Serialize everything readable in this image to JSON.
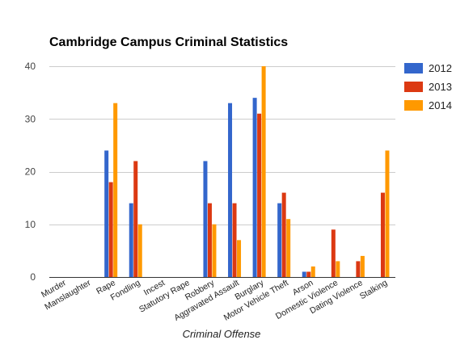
{
  "chart_data": {
    "type": "bar",
    "title": "Cambridge Campus Criminal Statistics",
    "xlabel": "Criminal Offense",
    "ylabel": "",
    "ylim": [
      0,
      40
    ],
    "yticks": [
      0,
      10,
      20,
      30,
      40
    ],
    "grid": true,
    "legend_position": "right",
    "categories": [
      "Murder",
      "Manslaughter",
      "Rape",
      "Fondling",
      "Incest",
      "Statutory Rape",
      "Robbery",
      "Aggravated Assault",
      "Burglary",
      "Motor Vehicle Theft",
      "Arson",
      "Domestic Violence",
      "Dating Violence",
      "Stalking"
    ],
    "series": [
      {
        "name": "2012",
        "color": "#3366cc",
        "values": [
          0,
          0,
          24,
          14,
          0,
          0,
          22,
          33,
          34,
          14,
          1,
          0,
          0,
          0
        ]
      },
      {
        "name": "2013",
        "color": "#dc3912",
        "values": [
          0,
          0,
          18,
          22,
          0,
          0,
          14,
          14,
          31,
          16,
          1,
          9,
          3,
          16
        ]
      },
      {
        "name": "2014",
        "color": "#ff9900",
        "values": [
          0,
          0,
          33,
          10,
          0,
          0,
          10,
          7,
          40,
          11,
          2,
          3,
          4,
          24
        ]
      }
    ]
  }
}
